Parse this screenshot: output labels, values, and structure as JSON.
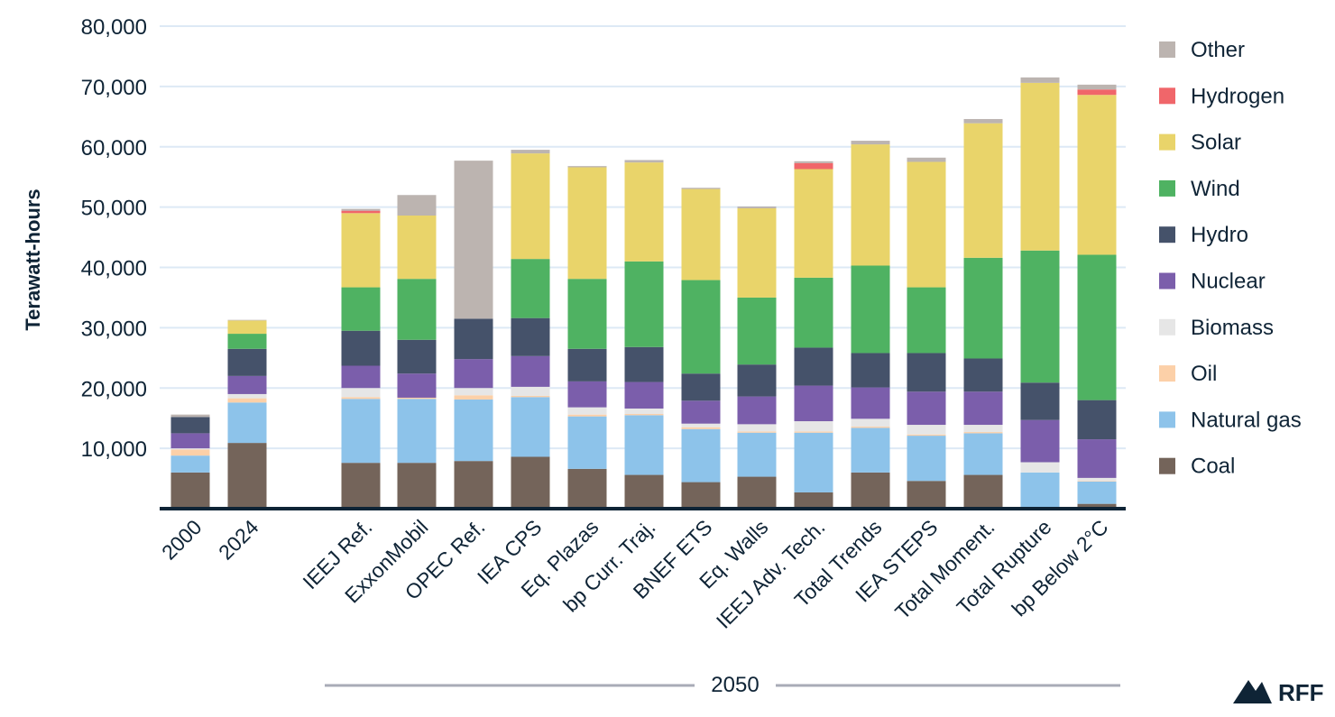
{
  "chart_data": {
    "type": "bar",
    "stacked": true,
    "ylabel": "Terawatt-hours",
    "ylim": [
      0,
      80000
    ],
    "yticks": [
      10000,
      20000,
      30000,
      40000,
      50000,
      60000,
      70000,
      80000
    ],
    "ytick_labels": [
      "10,000",
      "20,000",
      "30,000",
      "40,000",
      "50,000",
      "60,000",
      "70,000",
      "80,000"
    ],
    "grid": true,
    "legend_position": "right",
    "group_label": "2050",
    "categories": [
      "2000",
      "2024",
      "IEEJ Ref.",
      "ExxonMobil",
      "OPEC Ref.",
      "IEA CPS",
      "Eq. Plazas",
      "bp Curr. Traj.",
      "BNEF ETS",
      "Eq. Walls",
      "IEEJ Adv. Tech.",
      "Total Trends",
      "IEA STEPS",
      "Total Moment.",
      "Total Rupture",
      "bp Below 2°C"
    ],
    "series": [
      {
        "name": "Coal",
        "color": "#74645a",
        "values": [
          6000,
          10900,
          7600,
          7600,
          7900,
          8600,
          6600,
          5600,
          4400,
          5300,
          2700,
          6000,
          4600,
          5600,
          0,
          800
        ]
      },
      {
        "name": "Natural gas",
        "color": "#8dc3ea",
        "values": [
          2800,
          6700,
          10600,
          10600,
          10200,
          9900,
          8700,
          9900,
          8800,
          7300,
          9900,
          7400,
          7500,
          6900,
          6000,
          3700
        ]
      },
      {
        "name": "Oil",
        "color": "#fcd0a8",
        "values": [
          1000,
          700,
          300,
          200,
          700,
          200,
          300,
          200,
          300,
          200,
          200,
          200,
          200,
          200,
          0,
          100
        ]
      },
      {
        "name": "Biomass",
        "color": "#e6e6e6",
        "values": [
          200,
          700,
          1500,
          0,
          1200,
          1500,
          1200,
          900,
          600,
          1200,
          1700,
          1300,
          1600,
          1200,
          1700,
          500
        ]
      },
      {
        "name": "Nuclear",
        "color": "#7b5eab",
        "values": [
          2500,
          3000,
          3700,
          4000,
          4800,
          5100,
          4300,
          4400,
          3800,
          4600,
          5900,
          5200,
          5500,
          5500,
          7000,
          6400
        ]
      },
      {
        "name": "Hydro",
        "color": "#45526a",
        "values": [
          2700,
          4500,
          5800,
          5600,
          6700,
          6300,
          5400,
          5800,
          4500,
          5300,
          6300,
          5700,
          6400,
          5500,
          6200,
          6500
        ]
      },
      {
        "name": "Wind",
        "color": "#4fb262",
        "values": [
          0,
          2500,
          7200,
          10100,
          0,
          9800,
          11600,
          14200,
          15500,
          11100,
          11600,
          14500,
          10900,
          16700,
          21900,
          24100
        ]
      },
      {
        "name": "Solar",
        "color": "#e9d46a",
        "values": [
          0,
          2200,
          12300,
          10500,
          0,
          17500,
          18500,
          16400,
          15100,
          14800,
          18000,
          20100,
          20800,
          22300,
          27800,
          26500
        ]
      },
      {
        "name": "Hydrogen",
        "color": "#f0666a",
        "values": [
          0,
          0,
          400,
          0,
          0,
          0,
          0,
          0,
          0,
          0,
          1000,
          0,
          0,
          0,
          0,
          900
        ]
      },
      {
        "name": "Other",
        "color": "#bcb4b0",
        "values": [
          400,
          100,
          300,
          3400,
          26200,
          600,
          200,
          400,
          200,
          300,
          300,
          600,
          700,
          700,
          900,
          800
        ]
      }
    ]
  },
  "brand": {
    "name": "RFF"
  }
}
